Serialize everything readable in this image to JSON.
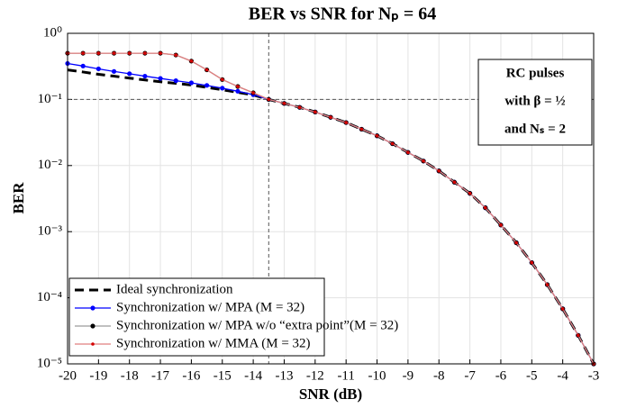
{
  "chart_data": {
    "type": "line",
    "title": "BER vs SNR for Nₚ = 64",
    "xlabel": "SNR (dB)",
    "ylabel": "BER",
    "log_y": true,
    "grid": true,
    "annotation": [
      "RC pulses",
      "with β = ½",
      "and Nₛ = 2"
    ],
    "reference_lines": {
      "x": -13.5,
      "y": 0.1
    },
    "legend_position": "lower left",
    "xlim": [
      -20,
      -3
    ],
    "ylim": [
      1e-05,
      1
    ],
    "xticks": [
      -20,
      -19,
      -18,
      -17,
      -16,
      -15,
      -14,
      -13,
      -12,
      -11,
      -10,
      -9,
      -8,
      -7,
      -6,
      -5,
      -4,
      -3
    ],
    "yticks": [
      {
        "value": 1,
        "label": "10⁰"
      },
      {
        "value": 0.1,
        "label": "10⁻¹"
      },
      {
        "value": 0.01,
        "label": "10⁻²"
      },
      {
        "value": 0.001,
        "label": "10⁻³"
      },
      {
        "value": 0.0001,
        "label": "10⁻⁴"
      },
      {
        "value": 1e-05,
        "label": "10⁻⁵"
      }
    ],
    "x": [
      -20,
      -19.5,
      -19,
      -18.5,
      -18,
      -17.5,
      -17,
      -16.5,
      -16,
      -15.5,
      -15,
      -14.5,
      -14,
      -13.5,
      -13,
      -12.5,
      -12,
      -11.5,
      -11,
      -10.5,
      -10,
      -9.5,
      -9,
      -8.5,
      -8,
      -7.5,
      -7,
      -6.5,
      -6,
      -5.5,
      -5,
      -4.5,
      -4,
      -3.5,
      -3
    ],
    "series": [
      {
        "name": "Ideal synchronization",
        "color": "#000000",
        "line_style": "dashed",
        "marker": "none",
        "values": [
          0.28,
          0.26,
          0.24,
          0.225,
          0.21,
          0.197,
          0.185,
          0.175,
          0.165,
          0.152,
          0.14,
          0.128,
          0.117,
          0.1,
          0.0871,
          0.0759,
          0.0646,
          0.0537,
          0.0447,
          0.0355,
          0.0282,
          0.0214,
          0.0158,
          0.0117,
          0.0083,
          0.0056,
          0.0038,
          0.0023,
          0.00126,
          0.00068,
          0.00034,
          0.000158,
          6.8e-05,
          2.7e-05,
          1e-05
        ]
      },
      {
        "name": "Synchronization w/ MPA (M = 32)",
        "color": "#0000ff",
        "marker_color": "#0000ff",
        "line_style": "solid",
        "marker": "dot",
        "values": [
          0.35,
          0.32,
          0.29,
          0.265,
          0.245,
          0.225,
          0.208,
          0.192,
          0.178,
          0.163,
          0.148,
          0.133,
          0.118,
          0.1,
          0.0871,
          0.0759,
          0.0646,
          0.0537,
          0.0447,
          0.0355,
          0.0282,
          0.0214,
          0.0158,
          0.0117,
          0.0083,
          0.0056,
          0.0038,
          0.0023,
          0.00126,
          0.00068,
          0.00034,
          0.000158,
          6.8e-05,
          2.7e-05,
          1e-05
        ]
      },
      {
        "name": "Synchronization w/ MPA w/o “extra point”(M = 32)",
        "color": "#9a9a9a",
        "marker_color": "#000000",
        "line_style": "solid",
        "marker": "dot",
        "values": [
          0.5,
          0.5,
          0.5,
          0.5,
          0.5,
          0.5,
          0.5,
          0.47,
          0.38,
          0.28,
          0.2,
          0.157,
          0.126,
          0.1,
          0.0871,
          0.0759,
          0.0646,
          0.0537,
          0.0447,
          0.0355,
          0.0282,
          0.0214,
          0.0158,
          0.0117,
          0.0083,
          0.0056,
          0.0038,
          0.0023,
          0.00126,
          0.00068,
          0.00034,
          0.000158,
          6.8e-05,
          2.7e-05,
          1e-05
        ]
      },
      {
        "name": "Synchronization w/ MMA (M = 32)",
        "color": "#e07f7f",
        "marker_color": "#d40000",
        "line_style": "solid",
        "marker": "small-dot",
        "values": [
          0.5,
          0.5,
          0.5,
          0.5,
          0.5,
          0.5,
          0.5,
          0.47,
          0.38,
          0.28,
          0.2,
          0.157,
          0.126,
          0.1,
          0.0871,
          0.0759,
          0.0646,
          0.0537,
          0.0447,
          0.0355,
          0.0282,
          0.0214,
          0.0158,
          0.0117,
          0.0083,
          0.0056,
          0.0038,
          0.0023,
          0.00126,
          0.00068,
          0.00034,
          0.000158,
          6.8e-05,
          2.7e-05,
          1e-05
        ]
      }
    ]
  }
}
